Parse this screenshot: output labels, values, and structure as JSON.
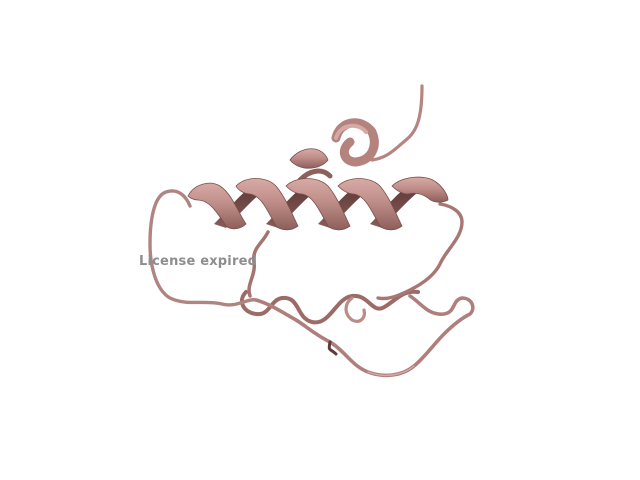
{
  "viewer": {
    "watermark_text": "License expired",
    "representation": "cartoon",
    "colors": {
      "background": "#ffffff",
      "ribbon_light": "#c79a96",
      "ribbon_mid": "#b27e79",
      "ribbon_dark": "#6e4744",
      "coil": "#a97874",
      "watermark": "#8e8e8e"
    }
  }
}
